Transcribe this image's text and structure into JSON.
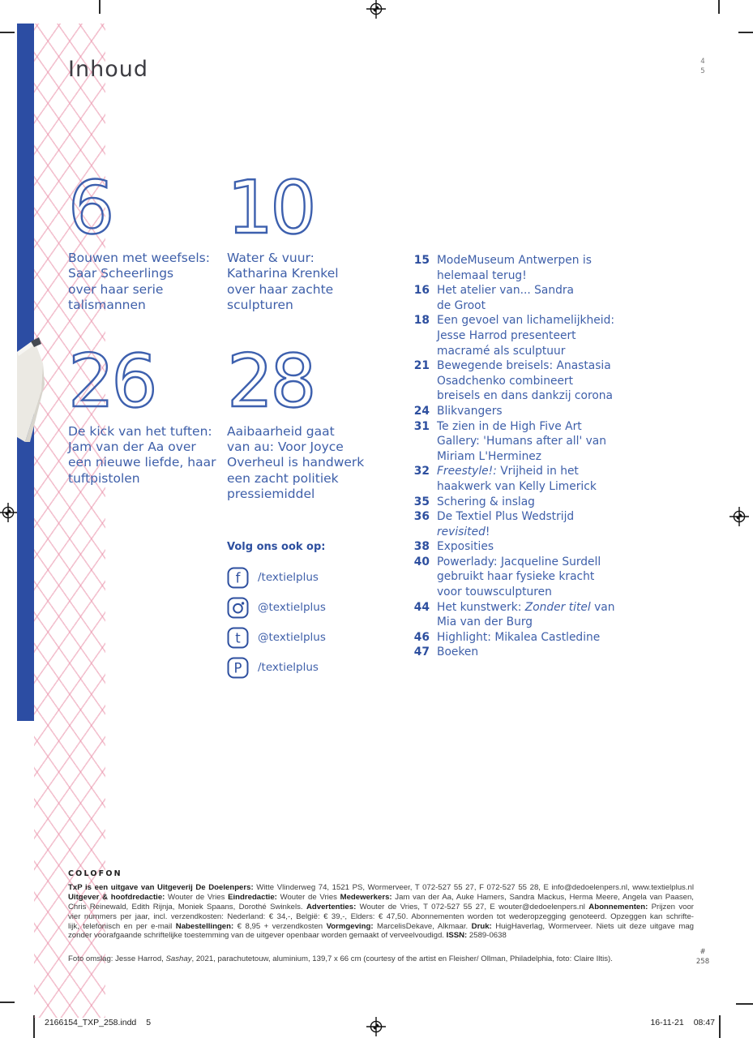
{
  "page": {
    "title": "Inhoud",
    "corner_page_numbers": [
      "4",
      "5"
    ],
    "issue_mark": "#",
    "issue_number": "258"
  },
  "features": [
    {
      "num": "6",
      "lines": [
        "Bouwen met weefsels:",
        "Saar Scheerlings",
        "over haar serie",
        "talismannen"
      ]
    },
    {
      "num": "10",
      "lines": [
        "Water & vuur:",
        "Katharina Krenkel",
        "over haar zachte",
        "sculpturen"
      ]
    },
    {
      "num": "26",
      "lines": [
        "De kick van het tuften:",
        "Jam van der Aa over",
        "een nieuwe liefde, haar",
        "tuftpistolen"
      ]
    },
    {
      "num": "28",
      "lines": [
        "Aaibaarheid gaat",
        "van au: Voor Joyce",
        "Overheul is handwerk",
        "een zacht politiek",
        "pressiemiddel"
      ]
    }
  ],
  "toc": [
    {
      "num": "15",
      "lines": [
        [
          {
            "t": "ModeMuseum Antwerpen is"
          }
        ],
        [
          {
            "t": "helemaal terug!"
          }
        ]
      ]
    },
    {
      "num": "16",
      "lines": [
        [
          {
            "t": "Het atelier van... Sandra"
          }
        ],
        [
          {
            "t": "de Groot"
          }
        ]
      ]
    },
    {
      "num": "18",
      "lines": [
        [
          {
            "t": "Een gevoel van lichamelijkheid:"
          }
        ],
        [
          {
            "t": "Jesse Harrod presenteert"
          }
        ],
        [
          {
            "t": "macramé als sculptuur"
          }
        ]
      ]
    },
    {
      "num": "21",
      "lines": [
        [
          {
            "t": "Bewegende breisels: Anastasia"
          }
        ],
        [
          {
            "t": "Osadchenko combineert"
          }
        ],
        [
          {
            "t": "breisels en dans dankzij corona"
          }
        ]
      ]
    },
    {
      "num": "24",
      "lines": [
        [
          {
            "t": "Blikvangers"
          }
        ]
      ]
    },
    {
      "num": "31",
      "lines": [
        [
          {
            "t": "Te zien in de High Five Art"
          }
        ],
        [
          {
            "t": "Gallery: 'Humans after all' van"
          }
        ],
        [
          {
            "t": "Miriam L'Herminez"
          }
        ]
      ]
    },
    {
      "num": "32",
      "lines": [
        [
          {
            "t": "Freestyle!:",
            "i": true
          },
          {
            "t": " Vrijheid in het"
          }
        ],
        [
          {
            "t": "haakwerk van Kelly Limerick"
          }
        ]
      ]
    },
    {
      "num": "35",
      "lines": [
        [
          {
            "t": "Schering & inslag"
          }
        ]
      ]
    },
    {
      "num": "36",
      "lines": [
        [
          {
            "t": "De Textiel Plus Wedstrijd"
          }
        ],
        [
          {
            "t": "revisited",
            "i": true
          },
          {
            "t": "!"
          }
        ]
      ]
    },
    {
      "num": "38",
      "lines": [
        [
          {
            "t": "Exposities"
          }
        ]
      ]
    },
    {
      "num": "40",
      "lines": [
        [
          {
            "t": "Powerlady: Jacqueline Surdell"
          }
        ],
        [
          {
            "t": "gebruikt haar fysieke kracht"
          }
        ],
        [
          {
            "t": "voor touwsculpturen"
          }
        ]
      ]
    },
    {
      "num": "44",
      "lines": [
        [
          {
            "t": "Het kunstwerk: "
          },
          {
            "t": "Zonder titel",
            "i": true
          },
          {
            "t": " van"
          }
        ],
        [
          {
            "t": "Mia van der Burg"
          }
        ]
      ]
    },
    {
      "num": "46",
      "lines": [
        [
          {
            "t": "Highlight: Mikalea Castledine"
          }
        ]
      ]
    },
    {
      "num": "47",
      "lines": [
        [
          {
            "t": "Boeken"
          }
        ]
      ]
    }
  ],
  "social": {
    "heading": "Volg ons ook op:",
    "items": [
      {
        "icon": "facebook-icon",
        "glyph": "f",
        "handle": "/textielplus"
      },
      {
        "icon": "instagram-icon",
        "glyph": "",
        "handle": "@textielplus"
      },
      {
        "icon": "twitter-icon",
        "glyph": "t",
        "handle": "@textielplus"
      },
      {
        "icon": "pinterest-icon",
        "glyph": "P",
        "handle": "/textielplus"
      }
    ]
  },
  "colofon": {
    "heading": "COLOFON",
    "lines": [
      [
        {
          "t": "TxP is een uitgave van Uitgeverij De Doelenpers:",
          "b": true
        },
        {
          "t": " Witte Vlinderweg 74, 1521 PS, Wormerveer, T 072-527 55 27, F 072-527 55 28, E info@dedoelenpers.nl, www.textielplus.nl"
        }
      ],
      [
        {
          "t": "Uitgever & hoofdredactie:",
          "b": true
        },
        {
          "t": " Wouter de Vries "
        },
        {
          "t": "Eindredactie:",
          "b": true
        },
        {
          "t": " Wouter de Vries "
        },
        {
          "t": "Medewerkers:",
          "b": true
        },
        {
          "t": " Jam van der Aa, Auke Hamers, Sandra Mackus, Herma Meere, Angela van Paasen,"
        }
      ],
      [
        {
          "t": "Chris Reinewald, Edith Rijnja, Moniek Spaans, Dorothé Swinkels. "
        },
        {
          "t": "Advertenties:",
          "b": true
        },
        {
          "t": " Wouter de Vries, T 072-527 55 27, E wouter@dedoelenpers.nl "
        },
        {
          "t": "Abonnementen:",
          "b": true
        },
        {
          "t": " Prijzen voor"
        }
      ],
      [
        {
          "t": "vier nummers per jaar, incl. verzendkosten: Nederland: € 34,-, België: € 39,-, Elders: € 47,50. Abonnementen worden tot wederopzegging genoteerd. Opzeggen kan schrifte-"
        }
      ],
      [
        {
          "t": "lijk, telefonisch en per e-mail "
        },
        {
          "t": "Nabestellingen:",
          "b": true
        },
        {
          "t": " € 8,95 + verzendkosten "
        },
        {
          "t": "Vormgeving:",
          "b": true
        },
        {
          "t": " MarcelisDekave, Alkmaar. "
        },
        {
          "t": "Druk:",
          "b": true
        },
        {
          "t": " HuigHaverlag, Wormerveer. Niets uit deze uitgave mag"
        }
      ],
      [
        {
          "t": "zonder voorafgaande schriftelijke toestemming van de uitgever openbaar worden gemaakt of verveelvoudigd. "
        },
        {
          "t": "ISSN:",
          "b": true
        },
        {
          "t": " 2589-0638"
        }
      ]
    ],
    "caption": [
      {
        "t": "Foto omslag: Jesse Harrod, "
      },
      {
        "t": "Sashay",
        "i": true
      },
      {
        "t": ", 2021, parachutetouw, aluminium, 139,7 x 66 cm (courtesy of the artist en Fleisher/ Ollman, Philadelphia, foto: Claire Iltis)."
      }
    ]
  },
  "footer": {
    "file": "2166154_TXP_258.indd",
    "page": "5",
    "date": "16-11-21",
    "time": "08:47"
  },
  "colors": {
    "brand_blue": "#2c4da3",
    "text_blue": "#3e5fa9",
    "lattice_pink": "#e98ea7"
  }
}
